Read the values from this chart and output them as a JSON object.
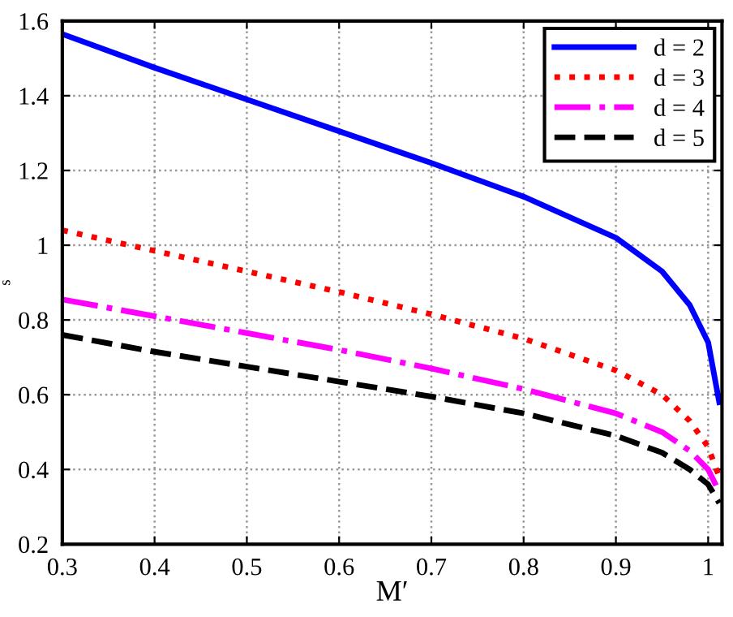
{
  "chart_data": {
    "type": "line",
    "xlabel": "M′",
    "ylabel": "s",
    "x": [
      0.3,
      0.4,
      0.5,
      0.6,
      0.7,
      0.8,
      0.9,
      0.95,
      0.98,
      1.0,
      1.012
    ],
    "series": [
      {
        "name": "d = 2",
        "color": "#0000ff",
        "line_style": "solid",
        "values": [
          1.565,
          1.475,
          1.39,
          1.305,
          1.22,
          1.13,
          1.02,
          0.93,
          0.84,
          0.74,
          0.58
        ]
      },
      {
        "name": "d = 3",
        "color": "#ff0000",
        "line_style": "dotted",
        "values": [
          1.04,
          0.985,
          0.93,
          0.875,
          0.815,
          0.75,
          0.665,
          0.6,
          0.53,
          0.46,
          0.38
        ]
      },
      {
        "name": "d = 4",
        "color": "#ff00ff",
        "line_style": "dashdot",
        "values": [
          0.855,
          0.81,
          0.765,
          0.72,
          0.67,
          0.615,
          0.55,
          0.5,
          0.45,
          0.4,
          0.34
        ]
      },
      {
        "name": "d = 5",
        "color": "#000000",
        "line_style": "dashed",
        "values": [
          0.76,
          0.715,
          0.675,
          0.635,
          0.595,
          0.55,
          0.49,
          0.445,
          0.4,
          0.36,
          0.31
        ]
      }
    ],
    "xlim": [
      0.3,
      1.015
    ],
    "ylim": [
      0.2,
      1.6
    ],
    "xticks": [
      {
        "value": 0.3,
        "label": "0.3"
      },
      {
        "value": 0.4,
        "label": "0.4"
      },
      {
        "value": 0.5,
        "label": "0.5"
      },
      {
        "value": 0.6,
        "label": "0.6"
      },
      {
        "value": 0.7,
        "label": "0.7"
      },
      {
        "value": 0.8,
        "label": "0.8"
      },
      {
        "value": 0.9,
        "label": "0.9"
      },
      {
        "value": 1,
        "label": "1"
      }
    ],
    "yticks": [
      {
        "value": 0.2,
        "label": "0.2"
      },
      {
        "value": 0.4,
        "label": "0.4"
      },
      {
        "value": 0.6,
        "label": "0.6"
      },
      {
        "value": 0.8,
        "label": "0.8"
      },
      {
        "value": 1,
        "label": "1"
      },
      {
        "value": 1.2,
        "label": "1.2"
      },
      {
        "value": 1.4,
        "label": "1.4"
      },
      {
        "value": 1.6,
        "label": "1.6"
      }
    ],
    "grid": true,
    "legend": "top right",
    "marker": "none"
  }
}
